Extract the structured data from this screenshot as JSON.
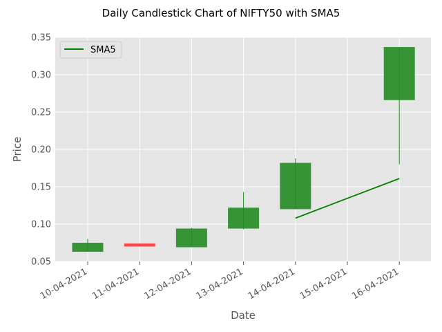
{
  "chart_data": {
    "type": "candlestick",
    "title": "Daily Candlestick Chart of NIFTY50 with SMA5",
    "xlabel": "Date",
    "ylabel": "Price",
    "ylim": [
      0.05,
      0.35
    ],
    "yticks": [
      "0.05",
      "0.10",
      "0.15",
      "0.20",
      "0.25",
      "0.30",
      "0.35"
    ],
    "categories": [
      "10-04-2021",
      "11-04-2021",
      "12-04-2021",
      "13-04-2021",
      "14-04-2021",
      "15-04-2021",
      "16-04-2021"
    ],
    "candles": [
      {
        "date": "10-04-2021",
        "open": 0.063,
        "high": 0.08,
        "low": 0.063,
        "close": 0.075
      },
      {
        "date": "11-04-2021",
        "open": 0.074,
        "high": 0.074,
        "low": 0.07,
        "close": 0.07
      },
      {
        "date": "12-04-2021",
        "open": 0.069,
        "high": 0.095,
        "low": 0.069,
        "close": 0.094
      },
      {
        "date": "13-04-2021",
        "open": 0.094,
        "high": 0.143,
        "low": 0.093,
        "close": 0.122
      },
      {
        "date": "14-04-2021",
        "open": 0.12,
        "high": 0.188,
        "low": 0.12,
        "close": 0.182
      },
      {
        "date": "16-04-2021",
        "open": 0.266,
        "high": 0.337,
        "low": 0.18,
        "close": 0.337
      }
    ],
    "series": [
      {
        "name": "SMA5",
        "color": "#008000",
        "points": [
          {
            "date": "14-04-2021",
            "value": 0.108
          },
          {
            "date": "16-04-2021",
            "value": 0.161
          }
        ]
      }
    ],
    "legend": {
      "placement": "top-left"
    },
    "grid": true,
    "colors": {
      "up": "#228b22",
      "down": "#ff3333",
      "background": "#e5e5e5",
      "grid": "#ffffff"
    }
  }
}
